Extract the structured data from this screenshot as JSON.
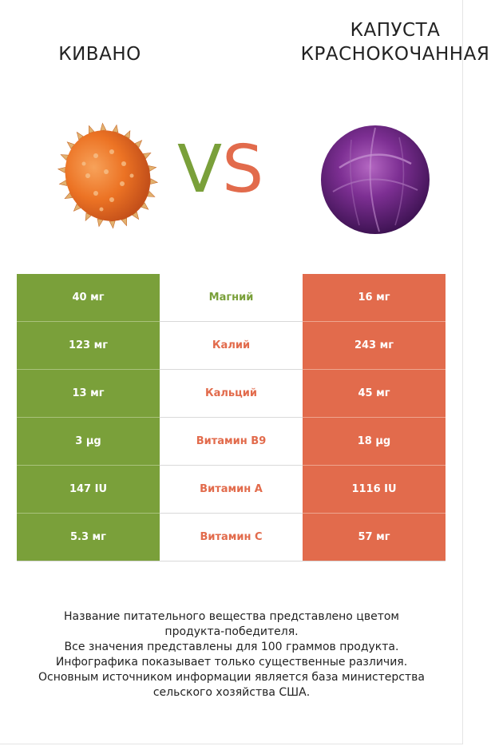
{
  "products": {
    "left": {
      "name": "КИВАНО"
    },
    "right": {
      "name": "КАПУСТА\nКРАСНОКОЧАННАЯ"
    }
  },
  "vs": {
    "v": "V",
    "s": "S"
  },
  "colors": {
    "left_accent": "#7aa03a",
    "right_accent": "#e26b4c"
  },
  "nutrients": [
    {
      "name": "Магний",
      "left": "40 мг",
      "right": "16 мг",
      "winner_color": "#7aa03a"
    },
    {
      "name": "Калий",
      "left": "123 мг",
      "right": "243 мг",
      "winner_color": "#e26b4c"
    },
    {
      "name": "Кальций",
      "left": "13 мг",
      "right": "45 мг",
      "winner_color": "#e26b4c"
    },
    {
      "name": "Витамин B9",
      "left": "3 µg",
      "right": "18 µg",
      "winner_color": "#e26b4c"
    },
    {
      "name": "Витамин A",
      "left": "147 IU",
      "right": "1116 IU",
      "winner_color": "#e26b4c"
    },
    {
      "name": "Витамин C",
      "left": "5.3 мг",
      "right": "57 мг",
      "winner_color": "#e26b4c"
    }
  ],
  "footer": {
    "lines": [
      "Название питательного вещества представлено цветом",
      "продукта-победителя.",
      "Все значения представлены для 100 граммов продукта.",
      "Инфографика показывает только существенные различия.",
      "Основным источником информации является база министерства",
      "сельского хозяйства США."
    ]
  }
}
